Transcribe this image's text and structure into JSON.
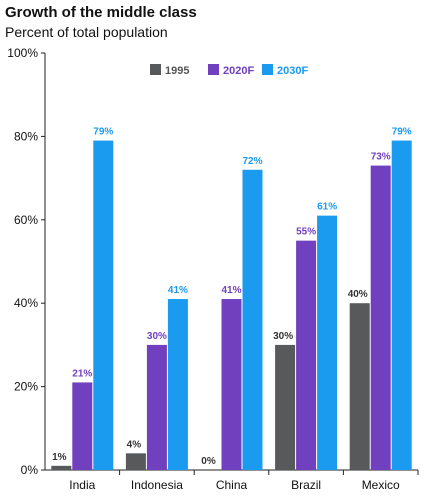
{
  "chart_data": {
    "type": "bar",
    "title": "Growth of the middle class",
    "subtitle": "Percent of total population",
    "categories": [
      "India",
      "Indonesia",
      "China",
      "Brazil",
      "Mexico"
    ],
    "series": [
      {
        "name": "1995",
        "color": "#58595b",
        "values": [
          1,
          4,
          0,
          30,
          40
        ],
        "labels": [
          "1%",
          "4%",
          "0%",
          "30%",
          "40%"
        ],
        "label_color": "#333333"
      },
      {
        "name": "2020F",
        "color": "#7140bf",
        "values": [
          21,
          30,
          41,
          55,
          73
        ],
        "labels": [
          "21%",
          "30%",
          "41%",
          "55%",
          "73%"
        ],
        "label_color": "#7140bf"
      },
      {
        "name": "2030F",
        "color": "#1a9bf0",
        "values": [
          79,
          41,
          72,
          61,
          79
        ],
        "labels": [
          "79%",
          "41%",
          "72%",
          "61%",
          "79%"
        ],
        "label_color": "#1a9bf0"
      }
    ],
    "yticks": [
      "0%",
      "20%",
      "40%",
      "60%",
      "80%",
      "100%"
    ],
    "ylim": [
      0,
      100
    ],
    "legend_position": "top-center",
    "grid": false
  }
}
